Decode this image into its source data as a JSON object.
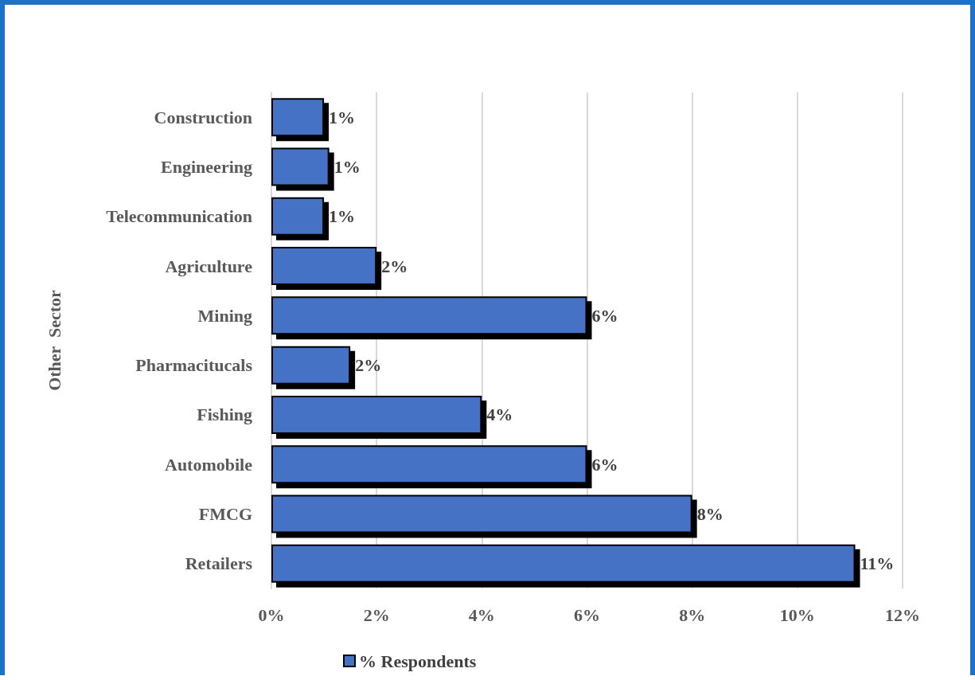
{
  "chart_data": {
    "type": "bar",
    "orientation": "horizontal",
    "ylabel": "Other  Sector",
    "categories": [
      "Construction",
      "Engineering",
      "Telecommunication",
      "Agriculture",
      "Mining",
      "Pharmacitucals",
      "Fishing",
      "Automobile",
      "FMCG",
      "Retailers"
    ],
    "series": [
      {
        "name": "% Respondents",
        "color": "#4472c4",
        "values": [
          1,
          1.1,
          1,
          2,
          6,
          1.5,
          4,
          6,
          8,
          11.1
        ],
        "value_labels": [
          "1%",
          "1%",
          "1%",
          "2%",
          "6%",
          "2%",
          "4%",
          "6%",
          "8%",
          "11%"
        ]
      }
    ],
    "xlim": [
      0,
      12
    ],
    "xticks": [
      {
        "value": 0,
        "label": "0%"
      },
      {
        "value": 2,
        "label": "2%"
      },
      {
        "value": 4,
        "label": "4%"
      },
      {
        "value": 6,
        "label": "6%"
      },
      {
        "value": 8,
        "label": "8%"
      },
      {
        "value": 10,
        "label": "10%"
      },
      {
        "value": 12,
        "label": "12%"
      }
    ],
    "grid": "x",
    "legend": "bottom"
  }
}
